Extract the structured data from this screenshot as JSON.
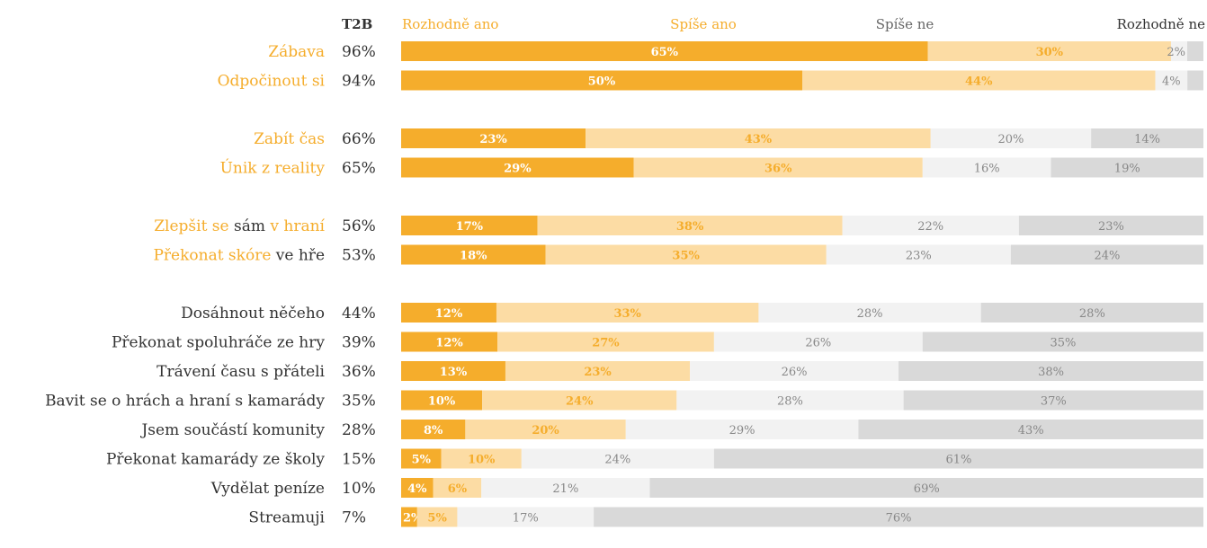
{
  "chart_data": {
    "type": "bar",
    "stacked": true,
    "orientation": "horizontal",
    "percent": true,
    "header": {
      "t2b_label": "T2B",
      "legend": [
        "Rozhodně ano",
        "Spíše ano",
        "Spíše ne",
        "Rozhodně ne"
      ]
    },
    "colors": {
      "Rozhodně ano": "#f5ad2c",
      "Spíše ano": "#fcdca4",
      "Spíše ne": "#f2f2f2",
      "Rozhodně ne": "#d9d9d9",
      "label_highlight": "#f5ad2c",
      "label_dark": "#333333"
    },
    "rows": [
      {
        "label_parts": [
          {
            "text": "Zábava",
            "hl": true
          }
        ],
        "t2b": "96%",
        "values": [
          65,
          30,
          2,
          2
        ],
        "labels": [
          "65%",
          "30%",
          "2%",
          ""
        ],
        "group": 0
      },
      {
        "label_parts": [
          {
            "text": "Odpočinout si",
            "hl": true
          }
        ],
        "t2b": "94%",
        "values": [
          50,
          44,
          4,
          2
        ],
        "labels": [
          "50%",
          "44%",
          "4%",
          ""
        ],
        "group": 0
      },
      {
        "label_parts": [
          {
            "text": "Zabít čas",
            "hl": true
          }
        ],
        "t2b": "66%",
        "values": [
          23,
          43,
          20,
          14
        ],
        "labels": [
          "23%",
          "43%",
          "20%",
          "14%"
        ],
        "group": 1
      },
      {
        "label_parts": [
          {
            "text": "Únik z reality",
            "hl": true
          }
        ],
        "t2b": "65%",
        "values": [
          29,
          36,
          16,
          19
        ],
        "labels": [
          "29%",
          "36%",
          "16%",
          "19%"
        ],
        "group": 1
      },
      {
        "label_parts": [
          {
            "text": "Zlepšit se",
            "hl": true
          },
          {
            "text": " sám ",
            "hl": false
          },
          {
            "text": "v hraní",
            "hl": true
          }
        ],
        "t2b": "56%",
        "values": [
          17,
          38,
          22,
          23
        ],
        "labels": [
          "17%",
          "38%",
          "22%",
          "23%"
        ],
        "group": 2
      },
      {
        "label_parts": [
          {
            "text": "Překonat skóre",
            "hl": true
          },
          {
            "text": " ve hře",
            "hl": false
          }
        ],
        "t2b": "53%",
        "values": [
          18,
          35,
          23,
          24
        ],
        "labels": [
          "18%",
          "35%",
          "23%",
          "24%"
        ],
        "group": 2
      },
      {
        "label_parts": [
          {
            "text": "Dosáhnout něčeho",
            "hl": false
          }
        ],
        "t2b": "44%",
        "values": [
          12,
          33,
          28,
          28
        ],
        "labels": [
          "12%",
          "33%",
          "28%",
          "28%"
        ],
        "group": 3
      },
      {
        "label_parts": [
          {
            "text": "Překonat spoluhráče ze hry",
            "hl": false
          }
        ],
        "t2b": "39%",
        "values": [
          12,
          27,
          26,
          35
        ],
        "labels": [
          "12%",
          "27%",
          "26%",
          "35%"
        ],
        "group": 3
      },
      {
        "label_parts": [
          {
            "text": "Trávení času s přáteli",
            "hl": false
          }
        ],
        "t2b": "36%",
        "values": [
          13,
          23,
          26,
          38
        ],
        "labels": [
          "13%",
          "23%",
          "26%",
          "38%"
        ],
        "group": 3
      },
      {
        "label_parts": [
          {
            "text": "Bavit se o hrách a hraní s kamarády",
            "hl": false
          }
        ],
        "t2b": "35%",
        "values": [
          10,
          24,
          28,
          37
        ],
        "labels": [
          "10%",
          "24%",
          "28%",
          "37%"
        ],
        "group": 3
      },
      {
        "label_parts": [
          {
            "text": "Jsem součástí komunity",
            "hl": false
          }
        ],
        "t2b": "28%",
        "values": [
          8,
          20,
          29,
          43
        ],
        "labels": [
          "8%",
          "20%",
          "29%",
          "43%"
        ],
        "group": 3
      },
      {
        "label_parts": [
          {
            "text": "Překonat kamarády ze školy",
            "hl": false
          }
        ],
        "t2b": "15%",
        "values": [
          5,
          10,
          24,
          61
        ],
        "labels": [
          "5%",
          "10%",
          "24%",
          "61%"
        ],
        "group": 3
      },
      {
        "label_parts": [
          {
            "text": "Vydělat peníze",
            "hl": false
          }
        ],
        "t2b": "10%",
        "values": [
          4,
          6,
          21,
          69
        ],
        "labels": [
          "4%",
          "6%",
          "21%",
          "69%"
        ],
        "group": 3
      },
      {
        "label_parts": [
          {
            "text": "Streamuji",
            "hl": false
          }
        ],
        "t2b": "7%",
        "values": [
          2,
          5,
          17,
          76
        ],
        "labels": [
          "2%",
          "5%",
          "17%",
          "76%"
        ],
        "group": 3
      }
    ]
  }
}
